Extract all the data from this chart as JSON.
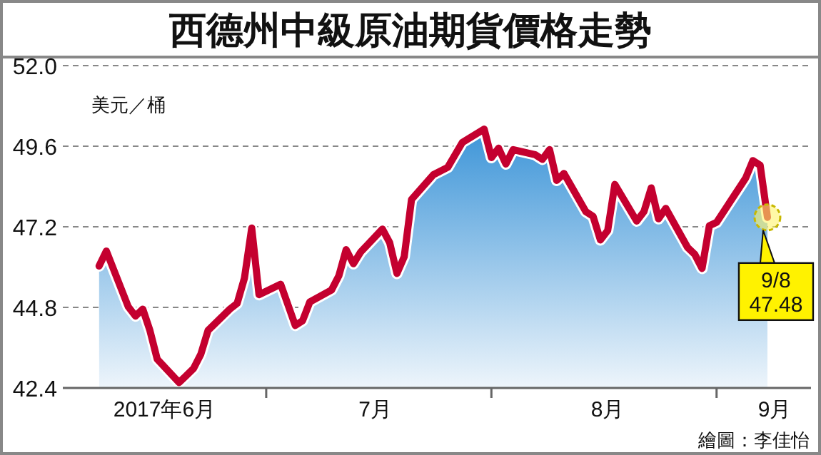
{
  "chart_data": {
    "type": "area",
    "title": "西德州中級原油期貨價格走勢",
    "ylabel": "美元／桶",
    "x": [
      "2017-06-08",
      "2017-06-09",
      "2017-06-12",
      "2017-06-13",
      "2017-06-14",
      "2017-06-15",
      "2017-06-16",
      "2017-06-19",
      "2017-06-20",
      "2017-06-21",
      "2017-06-22",
      "2017-06-23",
      "2017-06-26",
      "2017-06-27",
      "2017-06-28",
      "2017-06-29",
      "2017-06-30",
      "2017-07-03",
      "2017-07-05",
      "2017-07-06",
      "2017-07-07",
      "2017-07-10",
      "2017-07-11",
      "2017-07-12",
      "2017-07-13",
      "2017-07-14",
      "2017-07-17",
      "2017-07-18",
      "2017-07-19",
      "2017-07-20",
      "2017-07-21",
      "2017-07-24",
      "2017-07-26",
      "2017-07-28",
      "2017-07-31",
      "2017-08-01",
      "2017-08-02",
      "2017-08-03",
      "2017-08-04",
      "2017-08-07",
      "2017-08-08",
      "2017-08-09",
      "2017-08-10",
      "2017-08-11",
      "2017-08-14",
      "2017-08-15",
      "2017-08-16",
      "2017-08-17",
      "2017-08-18",
      "2017-08-21",
      "2017-08-22",
      "2017-08-23",
      "2017-08-24",
      "2017-08-25",
      "2017-08-28",
      "2017-08-29",
      "2017-08-30",
      "2017-08-31",
      "2017-09-01",
      "2017-09-05",
      "2017-09-06",
      "2017-09-07",
      "2017-09-08"
    ],
    "series": [
      {
        "color": "#c4002f",
        "values": [
          46.03,
          46.48,
          44.82,
          44.54,
          44.75,
          44.11,
          43.26,
          42.56,
          42.77,
          42.98,
          43.41,
          44.11,
          44.75,
          44.92,
          45.67,
          47.16,
          45.18,
          45.49,
          44.26,
          44.4,
          44.96,
          45.32,
          45.74,
          46.52,
          46.1,
          46.45,
          47.13,
          46.73,
          45.81,
          46.31,
          48.01,
          48.75,
          48.97,
          49.71,
          50.11,
          49.26,
          49.54,
          49.07,
          49.5,
          49.35,
          49.21,
          49.5,
          48.58,
          48.79,
          47.65,
          47.51,
          46.81,
          47.09,
          48.46,
          47.37,
          47.65,
          48.36,
          47.44,
          47.75,
          46.59,
          46.38,
          45.96,
          47.23,
          47.33,
          48.65,
          49.17,
          49.03,
          47.48
        ]
      }
    ],
    "xlim": [
      "2017-06-03",
      "2017-09-14"
    ],
    "xticks": [
      {
        "value": "2017-06-17",
        "label": "2017年6月"
      },
      {
        "value": "2017-07-01",
        "label": null
      },
      {
        "value": "2017-07-16",
        "label": "7月"
      },
      {
        "value": "2017-08-01",
        "label": null
      },
      {
        "value": "2017-08-17",
        "label": "8月"
      },
      {
        "value": "2017-09-01",
        "label": null
      },
      {
        "value": "2017-09-09",
        "label": "9月"
      }
    ],
    "ylim": [
      42.4,
      52.0
    ],
    "yticks": [
      42.4,
      44.8,
      47.2,
      49.6,
      {
        "value": 52,
        "label": "52.0"
      }
    ],
    "grid": "y",
    "marker": "none",
    "line_style": "solid",
    "annotations": [
      {
        "text": "9/8\n47.48",
        "x": "2017-09-08",
        "y": 47.48
      },
      "繪圖：李佳怡"
    ]
  }
}
